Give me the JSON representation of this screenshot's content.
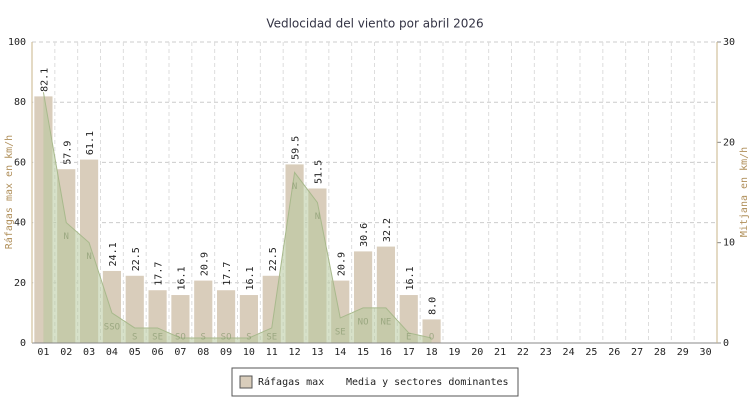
{
  "chart_data": {
    "type": "bar",
    "title": "Vedlocidad del viento por abril 2026",
    "y_label": "Ráfagas max en km/h",
    "y2_label": "Mitjana en km/h",
    "categories": [
      "01",
      "02",
      "03",
      "04",
      "05",
      "06",
      "07",
      "08",
      "09",
      "10",
      "11",
      "12",
      "13",
      "14",
      "15",
      "16",
      "17",
      "18",
      "19",
      "20",
      "21",
      "22",
      "23",
      "24",
      "25",
      "26",
      "27",
      "28",
      "29",
      "30"
    ],
    "series": [
      {
        "name": "Ráfagas max",
        "color": "#d9cdbb",
        "values": [
          82.1,
          57.9,
          61.1,
          24.1,
          22.5,
          17.7,
          16.1,
          20.9,
          17.7,
          16.1,
          22.5,
          59.5,
          51.5,
          20.9,
          30.6,
          32.2,
          16.1,
          8.0,
          null,
          null,
          null,
          null,
          null,
          null,
          null,
          null,
          null,
          null,
          null,
          null
        ],
        "value_labels": [
          "82.1",
          "57.9",
          "61.1",
          "24.1",
          "22.5",
          "17.7",
          "16.1",
          "20.9",
          "17.7",
          "16.1",
          "22.5",
          "59.5",
          "51.5",
          "20.9",
          "30.6",
          "32.2",
          "16.1",
          "8.0",
          null,
          null,
          null,
          null,
          null,
          null,
          null,
          null,
          null,
          null,
          null,
          null
        ]
      },
      {
        "name": "Media y sectores dominantes",
        "color": "#b7c99c",
        "axis": "y2",
        "values": [
          25,
          12,
          10,
          3,
          1.5,
          1.5,
          0.5,
          0.5,
          0.5,
          0.5,
          1.5,
          17,
          14,
          2.5,
          3.5,
          3.5,
          1,
          0.5,
          null,
          null,
          null,
          null,
          null,
          null,
          null,
          null,
          null,
          null,
          null,
          null
        ],
        "sectors": [
          null,
          "N",
          "N",
          "SSO",
          "S",
          "SE",
          "SO",
          "S",
          "SO",
          "S",
          "SE",
          "N",
          "N",
          "SE",
          "NO",
          "NE",
          "E",
          "O",
          null,
          null,
          null,
          null,
          null,
          null,
          null,
          null,
          null,
          null,
          null,
          null
        ]
      }
    ],
    "ylim": [
      0,
      100
    ],
    "yticks": [
      0,
      20,
      40,
      60,
      80,
      100
    ],
    "y2lim": [
      0,
      30
    ],
    "y2ticks": [
      0,
      10,
      20,
      30
    ],
    "grid": true
  }
}
